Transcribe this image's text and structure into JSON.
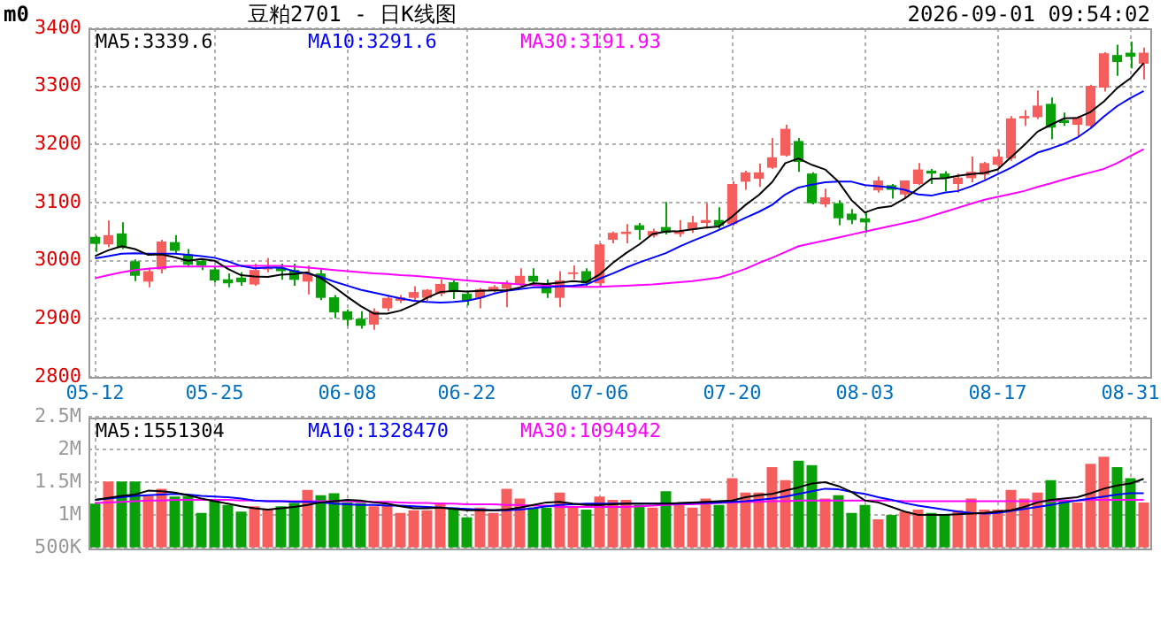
{
  "chart_data": [
    {
      "type": "candlestick",
      "title": "豆粕2701 - 日K线图",
      "subtitle": "2026-09-01 09:54:02",
      "annotations": [
        "m0"
      ],
      "categories": [
        "05-12",
        null,
        null,
        null,
        null,
        null,
        null,
        null,
        null,
        "05-25",
        null,
        null,
        null,
        null,
        null,
        null,
        null,
        null,
        null,
        "06-08",
        null,
        null,
        null,
        null,
        null,
        null,
        null,
        null,
        "06-22",
        null,
        null,
        null,
        null,
        null,
        null,
        null,
        null,
        null,
        "07-06",
        null,
        null,
        null,
        null,
        null,
        null,
        null,
        null,
        null,
        "07-20",
        null,
        null,
        null,
        null,
        null,
        null,
        null,
        null,
        null,
        "08-03",
        null,
        null,
        null,
        null,
        null,
        null,
        null,
        null,
        null,
        "08-17",
        null,
        null,
        null,
        null,
        null,
        null,
        null,
        null,
        null,
        "08-31",
        null
      ],
      "ohlc": [
        [
          3041,
          3043,
          3015,
          3029
        ],
        [
          3028,
          3069,
          3023,
          3044
        ],
        [
          3047,
          3066,
          3020,
          3022
        ],
        [
          2999,
          3002,
          2965,
          2974
        ],
        [
          2964,
          2988,
          2954,
          2982
        ],
        [
          2985,
          3036,
          2978,
          3033
        ],
        [
          3032,
          3044,
          3013,
          3017
        ],
        [
          3011,
          3020,
          2990,
          2993
        ],
        [
          3000,
          3003,
          2984,
          2992
        ],
        [
          2985,
          2990,
          2962,
          2966
        ],
        [
          2968,
          2978,
          2954,
          2961
        ],
        [
          2971,
          2980,
          2957,
          2963
        ],
        [
          2959,
          2995,
          2957,
          2984
        ],
        [
          2985,
          3005,
          2980,
          2988
        ],
        [
          2988,
          2995,
          2967,
          2982
        ],
        [
          2984,
          2995,
          2957,
          2967
        ],
        [
          2964,
          2992,
          2942,
          2977
        ],
        [
          2978,
          2985,
          2932,
          2936
        ],
        [
          2937,
          2941,
          2901,
          2911
        ],
        [
          2913,
          2916,
          2888,
          2898
        ],
        [
          2900,
          2913,
          2883,
          2888
        ],
        [
          2890,
          2918,
          2881,
          2913
        ],
        [
          2918,
          2941,
          2913,
          2936
        ],
        [
          2931,
          2941,
          2927,
          2937
        ],
        [
          2936,
          2956,
          2931,
          2946
        ],
        [
          2936,
          2951,
          2931,
          2950
        ],
        [
          2943,
          2968,
          2939,
          2960
        ],
        [
          2963,
          2966,
          2934,
          2946
        ],
        [
          2943,
          2946,
          2923,
          2931
        ],
        [
          2936,
          2953,
          2918,
          2951
        ],
        [
          2949,
          2958,
          2946,
          2955
        ],
        [
          2952,
          2966,
          2920,
          2961
        ],
        [
          2959,
          2987,
          2956,
          2974
        ],
        [
          2974,
          2987,
          2959,
          2964
        ],
        [
          2961,
          2968,
          2936,
          2944
        ],
        [
          2936,
          2982,
          2920,
          2966
        ],
        [
          2977,
          2992,
          2968,
          2979
        ],
        [
          2982,
          2987,
          2956,
          2961
        ],
        [
          2961,
          3030,
          2956,
          3028
        ],
        [
          3036,
          3050,
          3030,
          3048
        ],
        [
          3046,
          3063,
          3030,
          3050
        ],
        [
          3061,
          3065,
          3036,
          3053
        ],
        [
          3043,
          3055,
          3040,
          3051
        ],
        [
          3058,
          3101,
          3045,
          3048
        ],
        [
          3046,
          3070,
          3041,
          3051
        ],
        [
          3053,
          3077,
          3048,
          3066
        ],
        [
          3065,
          3099,
          3055,
          3070
        ],
        [
          3070,
          3092,
          3055,
          3060
        ],
        [
          3063,
          3137,
          3060,
          3132
        ],
        [
          3136,
          3155,
          3122,
          3152
        ],
        [
          3141,
          3167,
          3127,
          3152
        ],
        [
          3160,
          3211,
          3158,
          3178
        ],
        [
          3181,
          3234,
          3179,
          3227
        ],
        [
          3206,
          3211,
          3153,
          3170
        ],
        [
          3150,
          3152,
          3097,
          3099
        ],
        [
          3097,
          3124,
          3092,
          3109
        ],
        [
          3099,
          3104,
          3061,
          3073
        ],
        [
          3081,
          3089,
          3063,
          3070
        ],
        [
          3073,
          3084,
          3048,
          3066
        ],
        [
          3121,
          3145,
          3117,
          3138
        ],
        [
          3130,
          3132,
          3107,
          3122
        ],
        [
          3114,
          3138,
          3109,
          3138
        ],
        [
          3132,
          3168,
          3130,
          3157
        ],
        [
          3155,
          3158,
          3132,
          3150
        ],
        [
          3150,
          3154,
          3119,
          3142
        ],
        [
          3132,
          3150,
          3117,
          3143
        ],
        [
          3142,
          3179,
          3135,
          3153
        ],
        [
          3148,
          3170,
          3140,
          3168
        ],
        [
          3165,
          3191,
          3160,
          3179
        ],
        [
          3176,
          3249,
          3172,
          3245
        ],
        [
          3245,
          3259,
          3232,
          3249
        ],
        [
          3247,
          3293,
          3244,
          3267
        ],
        [
          3270,
          3281,
          3209,
          3229
        ],
        [
          3242,
          3255,
          3232,
          3237
        ],
        [
          3234,
          3249,
          3213,
          3247
        ],
        [
          3232,
          3303,
          3230,
          3301
        ],
        [
          3298,
          3359,
          3291,
          3357
        ],
        [
          3354,
          3372,
          3318,
          3342
        ],
        [
          3358,
          3377,
          3331,
          3351
        ],
        [
          3339,
          3367,
          3312,
          3358
        ]
      ],
      "colors": [
        "#0aa00a",
        "#f65e5e",
        "#0aa00a",
        "#0aa00a",
        "#f65e5e",
        "#f65e5e",
        "#0aa00a",
        "#0aa00a",
        "#0aa00a",
        "#0aa00a",
        "#0aa00a",
        "#0aa00a",
        "#f65e5e",
        "#f65e5e",
        "#0aa00a",
        "#0aa00a",
        "#f65e5e",
        "#0aa00a",
        "#0aa00a",
        "#0aa00a",
        "#0aa00a",
        "#f65e5e",
        "#f65e5e",
        "#f65e5e",
        "#f65e5e",
        "#f65e5e",
        "#f65e5e",
        "#0aa00a",
        "#0aa00a",
        "#f65e5e",
        "#f65e5e",
        "#f65e5e",
        "#f65e5e",
        "#0aa00a",
        "#0aa00a",
        "#f65e5e",
        "#f65e5e",
        "#0aa00a",
        "#f65e5e",
        "#f65e5e",
        "#f65e5e",
        "#0aa00a",
        "#f65e5e",
        "#0aa00a",
        "#f65e5e",
        "#f65e5e",
        "#f65e5e",
        "#0aa00a",
        "#f65e5e",
        "#f65e5e",
        "#f65e5e",
        "#f65e5e",
        "#f65e5e",
        "#0aa00a",
        "#0aa00a",
        "#f65e5e",
        "#0aa00a",
        "#0aa00a",
        "#0aa00a",
        "#f65e5e",
        "#0aa00a",
        "#f65e5e",
        "#f65e5e",
        "#0aa00a",
        "#0aa00a",
        "#f65e5e",
        "#f65e5e",
        "#f65e5e",
        "#f65e5e",
        "#f65e5e",
        "#f65e5e",
        "#f65e5e",
        "#0aa00a",
        "#0aa00a",
        "#f65e5e",
        "#f65e5e",
        "#f65e5e",
        "#0aa00a",
        "#0aa00a",
        "#f65e5e"
      ],
      "series": [
        {
          "type": "line",
          "name": "MA5:3339.6",
          "color": "#000000",
          "values": [
            3008,
            3018,
            3025,
            3020,
            3010,
            3011,
            3006,
            3000,
            3003,
            3000,
            2986,
            2975,
            2973,
            2972,
            2976,
            2977,
            2980,
            2970,
            2955,
            2938,
            2922,
            2909,
            2909,
            2914,
            2924,
            2936,
            2946,
            2948,
            2947,
            2948,
            2949,
            2949,
            2954,
            2961,
            2960,
            2962,
            2965,
            2963,
            2976,
            2996,
            3013,
            3028,
            3046,
            3050,
            3051,
            3054,
            3057,
            3059,
            3076,
            3096,
            3113,
            3135,
            3168,
            3176,
            3165,
            3157,
            3136,
            3104,
            3083,
            3091,
            3094,
            3107,
            3124,
            3141,
            3142,
            3146,
            3149,
            3151,
            3157,
            3178,
            3199,
            3222,
            3234,
            3245,
            3246,
            3256,
            3274,
            3297,
            3314,
            3340
          ]
        },
        {
          "type": "line",
          "name": "MA10:3291.6",
          "color": "#0000ff",
          "values": [
            3004,
            3008,
            3012,
            3013,
            3012,
            3012,
            3012,
            3010,
            3008,
            3005,
            2999,
            2991,
            2987,
            2988,
            2988,
            2982,
            2978,
            2972,
            2964,
            2957,
            2950,
            2945,
            2940,
            2935,
            2931,
            2929,
            2928,
            2929,
            2931,
            2936,
            2943,
            2948,
            2951,
            2954,
            2954,
            2956,
            2957,
            2959,
            2969,
            2978,
            2988,
            2997,
            3005,
            3013,
            3024,
            3034,
            3043,
            3053,
            3063,
            3074,
            3084,
            3096,
            3114,
            3126,
            3131,
            3135,
            3136,
            3136,
            3130,
            3128,
            3126,
            3122,
            3114,
            3112,
            3117,
            3120,
            3128,
            3138,
            3149,
            3160,
            3173,
            3186,
            3193,
            3201,
            3212,
            3228,
            3248,
            3266,
            3280,
            3292
          ]
        },
        {
          "type": "line",
          "name": "MA30:3191.93",
          "color": "#ff00ff",
          "values": [
            2970,
            2975,
            2980,
            2984,
            2986,
            2988,
            2990,
            2990,
            2990,
            2990,
            2990,
            2991,
            2991,
            2991,
            2991,
            2990,
            2988,
            2986,
            2984,
            2982,
            2980,
            2978,
            2977,
            2975,
            2974,
            2972,
            2970,
            2968,
            2966,
            2964,
            2962,
            2961,
            2959,
            2958,
            2957,
            2956,
            2955,
            2955,
            2955,
            2956,
            2957,
            2958,
            2959,
            2961,
            2963,
            2965,
            2968,
            2971,
            2978,
            2986,
            2996,
            3005,
            3015,
            3025,
            3030,
            3035,
            3040,
            3045,
            3050,
            3055,
            3060,
            3065,
            3070,
            3077,
            3084,
            3091,
            3098,
            3105,
            3110,
            3115,
            3120,
            3127,
            3133,
            3140,
            3146,
            3152,
            3158,
            3168,
            3180,
            3192
          ]
        }
      ],
      "ylim": [
        2800,
        3400
      ],
      "yticks": [
        2800,
        2900,
        3000,
        3100,
        3200,
        3300,
        3400
      ],
      "grid": true,
      "legend": "top left"
    },
    {
      "type": "bar",
      "tick_labels": "y",
      "categories": [
        null,
        null,
        null,
        null,
        null,
        null,
        null,
        null,
        null,
        null,
        null,
        null,
        null,
        null,
        null,
        null,
        null,
        null,
        null,
        null,
        null,
        null,
        null,
        null,
        null,
        null,
        null,
        null,
        null,
        null,
        null,
        null,
        null,
        null,
        null,
        null,
        null,
        null,
        null,
        null,
        null,
        null,
        null,
        null,
        null,
        null,
        null,
        null,
        null,
        null,
        null,
        null,
        null,
        null,
        null,
        null,
        null,
        null,
        null,
        null,
        null,
        null,
        null,
        null,
        null,
        null,
        null,
        null,
        null,
        null,
        null,
        null,
        null,
        null,
        null,
        null,
        null,
        null,
        null,
        null
      ],
      "series": [
        {
          "type": "bar",
          "values": [
            1170000,
            1510000,
            1510000,
            1510000,
            1290000,
            1400000,
            1280000,
            1290000,
            1030000,
            1220000,
            1150000,
            1050000,
            1130000,
            1090000,
            1130000,
            1180000,
            1380000,
            1300000,
            1330000,
            1190000,
            1180000,
            1130000,
            1150000,
            1030000,
            1070000,
            1070000,
            1190000,
            1110000,
            960000,
            1110000,
            1030000,
            1400000,
            1250000,
            1110000,
            1110000,
            1340000,
            1110000,
            1080000,
            1280000,
            1230000,
            1230000,
            1150000,
            1110000,
            1360000,
            1170000,
            1110000,
            1250000,
            1150000,
            1560000,
            1340000,
            1340000,
            1730000,
            1530000,
            1830000,
            1760000,
            1250000,
            1300000,
            1030000,
            1150000,
            930000,
            1000000,
            1050000,
            1080000,
            1030000,
            1000000,
            1070000,
            1250000,
            1080000,
            1080000,
            1380000,
            1250000,
            1340000,
            1530000,
            1230000,
            1190000,
            1780000,
            1890000,
            1730000,
            1560000,
            1190000
          ],
          "colors": [
            "#0aa00a",
            "#f65e5e",
            "#0aa00a",
            "#0aa00a",
            "#f65e5e",
            "#f65e5e",
            "#0aa00a",
            "#0aa00a",
            "#0aa00a",
            "#0aa00a",
            "#0aa00a",
            "#0aa00a",
            "#f65e5e",
            "#f65e5e",
            "#0aa00a",
            "#0aa00a",
            "#f65e5e",
            "#0aa00a",
            "#0aa00a",
            "#0aa00a",
            "#0aa00a",
            "#f65e5e",
            "#f65e5e",
            "#f65e5e",
            "#f65e5e",
            "#f65e5e",
            "#f65e5e",
            "#0aa00a",
            "#0aa00a",
            "#f65e5e",
            "#f65e5e",
            "#f65e5e",
            "#f65e5e",
            "#0aa00a",
            "#0aa00a",
            "#f65e5e",
            "#f65e5e",
            "#0aa00a",
            "#f65e5e",
            "#f65e5e",
            "#f65e5e",
            "#0aa00a",
            "#f65e5e",
            "#0aa00a",
            "#f65e5e",
            "#f65e5e",
            "#f65e5e",
            "#0aa00a",
            "#f65e5e",
            "#f65e5e",
            "#f65e5e",
            "#f65e5e",
            "#f65e5e",
            "#0aa00a",
            "#0aa00a",
            "#f65e5e",
            "#0aa00a",
            "#0aa00a",
            "#0aa00a",
            "#f65e5e",
            "#0aa00a",
            "#f65e5e",
            "#f65e5e",
            "#0aa00a",
            "#0aa00a",
            "#f65e5e",
            "#f65e5e",
            "#f65e5e",
            "#f65e5e",
            "#f65e5e",
            "#f65e5e",
            "#f65e5e",
            "#0aa00a",
            "#0aa00a",
            "#f65e5e",
            "#f65e5e",
            "#f65e5e",
            "#0aa00a",
            "#0aa00a",
            "#f65e5e"
          ]
        },
        {
          "type": "line",
          "name": "MA5:1551304",
          "color": "#000000",
          "values": [
            1230000,
            1260000,
            1290000,
            1310000,
            1370000,
            1360000,
            1340000,
            1300000,
            1250000,
            1210000,
            1170000,
            1130000,
            1100000,
            1080000,
            1100000,
            1120000,
            1150000,
            1190000,
            1210000,
            1230000,
            1220000,
            1190000,
            1170000,
            1130000,
            1100000,
            1100000,
            1110000,
            1090000,
            1070000,
            1070000,
            1070000,
            1080000,
            1110000,
            1150000,
            1190000,
            1200000,
            1170000,
            1150000,
            1150000,
            1160000,
            1170000,
            1170000,
            1170000,
            1170000,
            1180000,
            1190000,
            1200000,
            1210000,
            1220000,
            1270000,
            1300000,
            1320000,
            1370000,
            1420000,
            1480000,
            1500000,
            1440000,
            1350000,
            1220000,
            1190000,
            1120000,
            1050000,
            1000000,
            1000000,
            1000000,
            1010000,
            1020000,
            1030000,
            1050000,
            1070000,
            1120000,
            1190000,
            1230000,
            1250000,
            1270000,
            1330000,
            1400000,
            1450000,
            1480000,
            1550000
          ]
        },
        {
          "type": "line",
          "name": "MA10:1328470",
          "color": "#0000ff",
          "values": [
            1230000,
            1250000,
            1270000,
            1290000,
            1300000,
            1310000,
            1320000,
            1310000,
            1290000,
            1280000,
            1270000,
            1250000,
            1220000,
            1210000,
            1210000,
            1200000,
            1200000,
            1190000,
            1170000,
            1160000,
            1150000,
            1150000,
            1140000,
            1140000,
            1130000,
            1120000,
            1110000,
            1100000,
            1090000,
            1080000,
            1070000,
            1070000,
            1080000,
            1100000,
            1130000,
            1150000,
            1160000,
            1170000,
            1170000,
            1170000,
            1170000,
            1170000,
            1170000,
            1170000,
            1170000,
            1180000,
            1180000,
            1190000,
            1200000,
            1210000,
            1230000,
            1250000,
            1280000,
            1320000,
            1360000,
            1400000,
            1390000,
            1350000,
            1320000,
            1270000,
            1230000,
            1180000,
            1140000,
            1110000,
            1080000,
            1050000,
            1030000,
            1020000,
            1030000,
            1060000,
            1090000,
            1120000,
            1150000,
            1190000,
            1220000,
            1250000,
            1280000,
            1310000,
            1330000,
            1330000
          ]
        },
        {
          "type": "line",
          "name": "MA30:1094942",
          "color": "#ff00ff",
          "values": [
            1180000,
            1190000,
            1200000,
            1210000,
            1220000,
            1220000,
            1230000,
            1230000,
            1230000,
            1230000,
            1230000,
            1220000,
            1220000,
            1210000,
            1210000,
            1210000,
            1210000,
            1210000,
            1210000,
            1210000,
            1200000,
            1200000,
            1200000,
            1190000,
            1180000,
            1180000,
            1170000,
            1170000,
            1160000,
            1160000,
            1160000,
            1150000,
            1150000,
            1140000,
            1140000,
            1120000,
            1120000,
            1120000,
            1120000,
            1120000,
            1120000,
            1130000,
            1140000,
            1150000,
            1160000,
            1160000,
            1170000,
            1180000,
            1190000,
            1200000,
            1200000,
            1210000,
            1210000,
            1220000,
            1220000,
            1220000,
            1220000,
            1220000,
            1220000,
            1220000,
            1220000,
            1210000,
            1210000,
            1210000,
            1210000,
            1210000,
            1210000,
            1210000,
            1210000,
            1210000,
            1210000,
            1210000,
            1210000,
            1220000,
            1220000,
            1230000,
            1230000,
            1230000,
            1230000,
            1230000
          ]
        }
      ],
      "ylim": [
        500000,
        2500000
      ],
      "yticks": [
        {
          "value": 500000,
          "label": "500K"
        },
        {
          "value": 1000000,
          "label": "1M"
        },
        {
          "value": 1500000,
          "label": "1.5M"
        },
        {
          "value": 2000000,
          "label": "2M"
        },
        {
          "value": 2500000,
          "label": "2.5M"
        }
      ],
      "grid": true,
      "legend": "top left"
    }
  ]
}
